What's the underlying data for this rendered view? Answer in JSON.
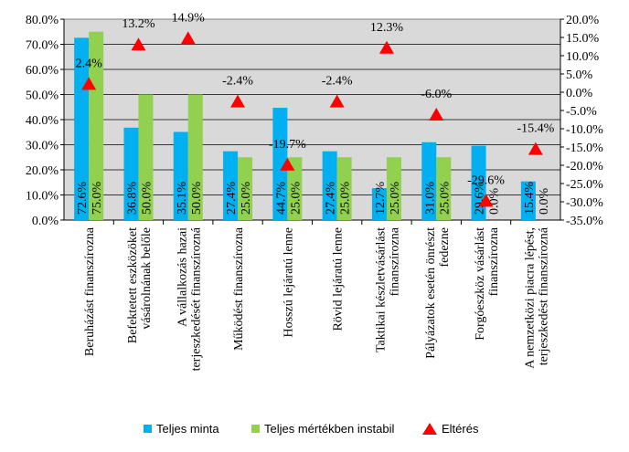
{
  "chart_data": {
    "type": "bar",
    "categories": [
      "Beruházást finanszírozna",
      "Befektetett eszközöket vásárolnának belőle",
      "A vállalkozás hazai terjeszkedését finanszírozná",
      "Működést finanszírozna",
      "Hosszú lejáratú lenne",
      "Rövid lejáratú lenne",
      "Taktikai készletvásárlást finanszírozna",
      "Pályázatok esetén önrészt fedezne",
      "Forgóeszköz vásárlást finanszírozna",
      "A nemzetközi piacra lépést, terjeszkedést finanszírozná"
    ],
    "category_lines": [
      [
        "Beruházást finanszírozna"
      ],
      [
        "Befektetett eszközöket",
        "vásárolnának belőle"
      ],
      [
        "A vállalkozás hazai",
        "terjeszkedését finanszírozná"
      ],
      [
        "Működést finanszírozna"
      ],
      [
        "Hosszú lejáratú lenne"
      ],
      [
        "Rövid lejáratú lenne"
      ],
      [
        "Taktikai készletvásárlást",
        "finanszírozna"
      ],
      [
        "Pályázatok esetén önrészt",
        "fedezne"
      ],
      [
        "Forgóeszköz vásárlást",
        "finanszírozna"
      ],
      [
        "A nemzetközi piacra lépést,",
        "terjeszkedést finanszírozná"
      ]
    ],
    "series": [
      {
        "name": "Teljes minta",
        "axis": "left",
        "color": "#00b0f0",
        "values": [
          72.6,
          36.8,
          35.1,
          27.4,
          44.7,
          27.4,
          12.7,
          31.0,
          29.6,
          15.4
        ],
        "labels": [
          "72.6%",
          "36.8%",
          "35.1%",
          "27.4%",
          "44.7%",
          "27.4%",
          "12.7%",
          "31.0%",
          "29.6%",
          "15.4%"
        ]
      },
      {
        "name": "Teljes mértékben instabil",
        "axis": "left",
        "color": "#92d050",
        "values": [
          75.0,
          50.0,
          50.0,
          25.0,
          25.0,
          25.0,
          25.0,
          25.0,
          0.0,
          0.0
        ],
        "labels": [
          "75.0%",
          "50.0%",
          "50.0%",
          "25.0%",
          "25.0%",
          "25.0%",
          "25.0%",
          "25.0%",
          "0.0%",
          "0.0%"
        ]
      },
      {
        "name": "Eltérés",
        "axis": "right",
        "color": "#ff0000",
        "marker": "triangle",
        "values": [
          2.4,
          13.2,
          14.9,
          -2.4,
          -19.7,
          -2.4,
          12.3,
          -6.0,
          -29.6,
          -15.4
        ],
        "labels": [
          "2.4%",
          "13.2%",
          "14.9%",
          "-2.4%",
          "-19.7%",
          "-2.4%",
          "12.3%",
          "-6.0%",
          "-29.6%",
          "-15.4%"
        ]
      }
    ],
    "y_left": {
      "min": 0,
      "max": 80,
      "step": 10,
      "ticks": [
        "0.0%",
        "10.0%",
        "20.0%",
        "30.0%",
        "40.0%",
        "50.0%",
        "60.0%",
        "70.0%",
        "80.0%"
      ]
    },
    "y_right": {
      "min": -35,
      "max": 20,
      "step": 5,
      "ticks": [
        "-35.0%",
        "-30.0%",
        "-25.0%",
        "-20.0%",
        "-15.0%",
        "-10.0%",
        "-5.0%",
        "0.0%",
        "5.0%",
        "10.0%",
        "15.0%",
        "20.0%"
      ]
    },
    "plot_background": "#d9d9d9",
    "grid": true,
    "legend_position": "bottom"
  }
}
